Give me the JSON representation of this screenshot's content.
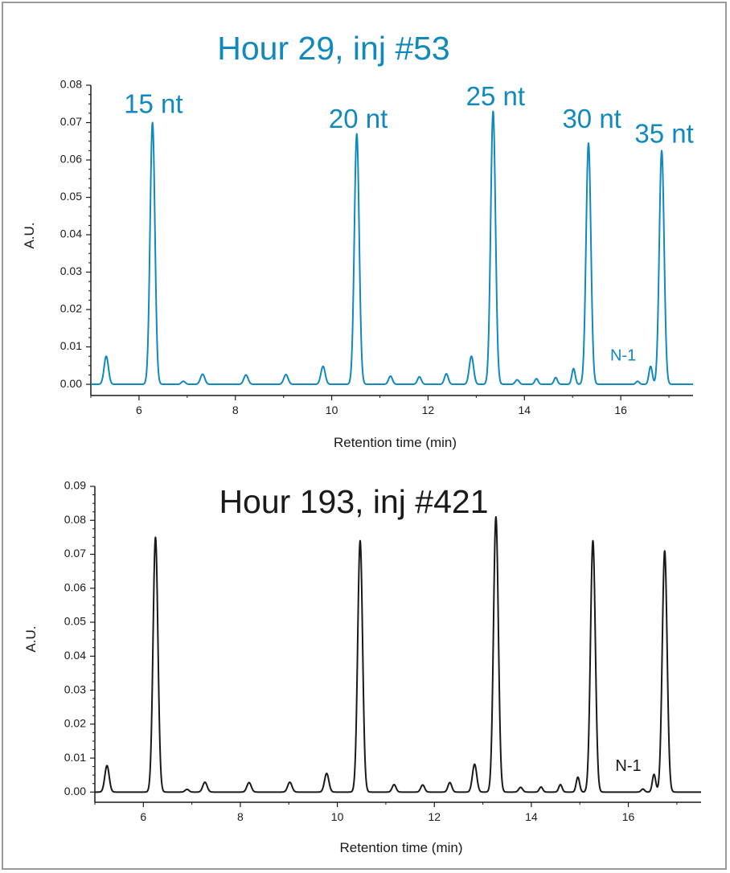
{
  "chart_data": [
    {
      "type": "line",
      "title": "Hour 29, inj #53",
      "color": "#1089be",
      "xlabel": "Retention time (min)",
      "ylabel": "A.U.",
      "xlim": [
        5.0,
        17.5
      ],
      "ylim": [
        -0.003,
        0.08
      ],
      "x_ticks": [
        6,
        8,
        10,
        12,
        14,
        16
      ],
      "y_ticks": [
        0.0,
        0.01,
        0.02,
        0.03,
        0.04,
        0.05,
        0.06,
        0.07,
        0.08
      ],
      "baseline": 0.0,
      "peaks": [
        {
          "x": 5.32,
          "y": 0.0075,
          "w": 0.045
        },
        {
          "x": 6.28,
          "y": 0.07,
          "w": 0.05
        },
        {
          "x": 6.92,
          "y": 0.0008,
          "w": 0.04
        },
        {
          "x": 7.32,
          "y": 0.0027,
          "w": 0.045
        },
        {
          "x": 8.22,
          "y": 0.0025,
          "w": 0.045
        },
        {
          "x": 9.05,
          "y": 0.0026,
          "w": 0.045
        },
        {
          "x": 9.82,
          "y": 0.0048,
          "w": 0.045
        },
        {
          "x": 10.52,
          "y": 0.067,
          "w": 0.05
        },
        {
          "x": 11.22,
          "y": 0.0022,
          "w": 0.04
        },
        {
          "x": 11.82,
          "y": 0.002,
          "w": 0.04
        },
        {
          "x": 12.38,
          "y": 0.0028,
          "w": 0.04
        },
        {
          "x": 12.9,
          "y": 0.0075,
          "w": 0.045
        },
        {
          "x": 13.35,
          "y": 0.073,
          "w": 0.05
        },
        {
          "x": 13.85,
          "y": 0.0012,
          "w": 0.04
        },
        {
          "x": 14.25,
          "y": 0.0015,
          "w": 0.035
        },
        {
          "x": 14.65,
          "y": 0.0018,
          "w": 0.035
        },
        {
          "x": 15.02,
          "y": 0.0042,
          "w": 0.035
        },
        {
          "x": 15.33,
          "y": 0.0645,
          "w": 0.05
        },
        {
          "x": 16.35,
          "y": 0.0008,
          "w": 0.035
        },
        {
          "x": 16.62,
          "y": 0.0048,
          "w": 0.035
        },
        {
          "x": 16.85,
          "y": 0.0625,
          "w": 0.05
        }
      ],
      "peak_labels": [
        {
          "text": "15 nt",
          "x": 6.3,
          "y": 0.0745
        },
        {
          "text": "20 nt",
          "x": 10.55,
          "y": 0.0705
        },
        {
          "text": "25 nt",
          "x": 13.4,
          "y": 0.0765
        },
        {
          "text": "30 nt",
          "x": 15.4,
          "y": 0.0705
        },
        {
          "text": "35 nt",
          "x": 16.9,
          "y": 0.0665
        }
      ],
      "annotations": [
        {
          "text": "N-1",
          "x": 16.05,
          "y": 0.0075
        }
      ]
    },
    {
      "type": "line",
      "title": "Hour 193, inj #421",
      "color": "#1a1a1a",
      "xlabel": "Retention time (min)",
      "ylabel": "A.U.",
      "xlim": [
        5.0,
        17.5
      ],
      "ylim": [
        -0.003,
        0.09
      ],
      "x_ticks": [
        6,
        8,
        10,
        12,
        14,
        16
      ],
      "y_ticks": [
        0.0,
        0.01,
        0.02,
        0.03,
        0.04,
        0.05,
        0.06,
        0.07,
        0.08,
        0.09
      ],
      "baseline": 0.0,
      "peaks": [
        {
          "x": 5.25,
          "y": 0.0078,
          "w": 0.045
        },
        {
          "x": 6.25,
          "y": 0.075,
          "w": 0.05
        },
        {
          "x": 6.9,
          "y": 0.0008,
          "w": 0.04
        },
        {
          "x": 7.27,
          "y": 0.0029,
          "w": 0.045
        },
        {
          "x": 8.18,
          "y": 0.0028,
          "w": 0.045
        },
        {
          "x": 9.02,
          "y": 0.0029,
          "w": 0.045
        },
        {
          "x": 9.78,
          "y": 0.0055,
          "w": 0.045
        },
        {
          "x": 10.47,
          "y": 0.074,
          "w": 0.05
        },
        {
          "x": 11.17,
          "y": 0.0022,
          "w": 0.04
        },
        {
          "x": 11.76,
          "y": 0.0021,
          "w": 0.04
        },
        {
          "x": 12.32,
          "y": 0.0028,
          "w": 0.04
        },
        {
          "x": 12.83,
          "y": 0.0082,
          "w": 0.045
        },
        {
          "x": 13.27,
          "y": 0.081,
          "w": 0.05
        },
        {
          "x": 13.78,
          "y": 0.0014,
          "w": 0.04
        },
        {
          "x": 14.2,
          "y": 0.0015,
          "w": 0.035
        },
        {
          "x": 14.6,
          "y": 0.0022,
          "w": 0.035
        },
        {
          "x": 14.96,
          "y": 0.0044,
          "w": 0.035
        },
        {
          "x": 15.27,
          "y": 0.074,
          "w": 0.05
        },
        {
          "x": 16.3,
          "y": 0.0009,
          "w": 0.035
        },
        {
          "x": 16.53,
          "y": 0.0052,
          "w": 0.035
        },
        {
          "x": 16.75,
          "y": 0.071,
          "w": 0.05
        }
      ],
      "peak_labels": [],
      "annotations": [
        {
          "text": "N-1",
          "x": 16.0,
          "y": 0.0075
        }
      ]
    }
  ]
}
